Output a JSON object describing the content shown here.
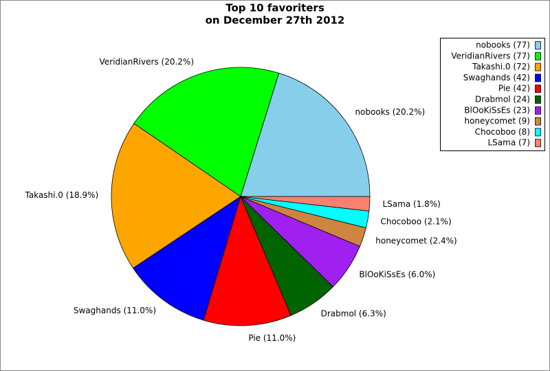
{
  "chart_data": {
    "type": "pie",
    "title": [
      "Top 10 favoriters",
      "on December 27th 2012"
    ],
    "categories": [
      "nobooks (77)",
      "VeridianRivers (77)",
      "Takashi.0 (72)",
      "Swaghands (42)",
      "Pie (42)",
      "Drabmol (24)",
      "BlOoKiSsEs (23)",
      "honeycomet (9)",
      "Chocoboo (8)",
      "LSama (7)"
    ],
    "values": [
      20.2,
      20.2,
      18.9,
      11.0,
      11.0,
      6.3,
      6.0,
      2.4,
      2.1,
      1.8
    ],
    "value_labels": [
      "nobooks (20.2%)",
      "VeridianRivers (20.2%)",
      "Takashi.0 (18.9%)",
      "Swaghands (11.0%)",
      "Pie (11.0%)",
      "Drabmol (6.3%)",
      "BlOoKiSsEs (6.0%)",
      "honeycomet (2.4%)",
      "Chocoboo (2.1%)",
      "LSama (1.8%)"
    ],
    "colors": [
      "#87ceeb",
      "#00ff00",
      "#ffa500",
      "#0000ff",
      "#ff0000",
      "#006400",
      "#a020f0",
      "#cd853f",
      "#00ffff",
      "#fa8072"
    ],
    "legend": "upper right"
  }
}
